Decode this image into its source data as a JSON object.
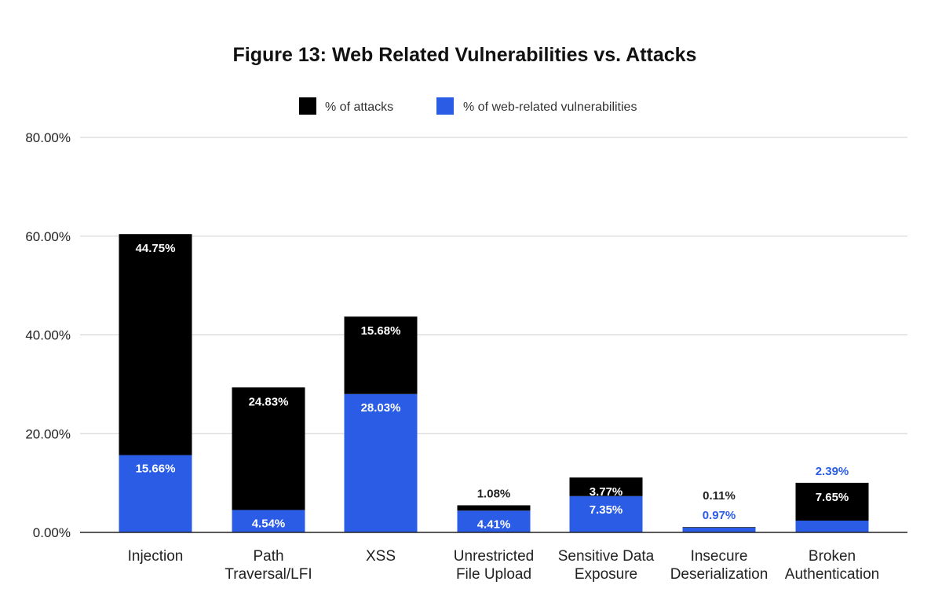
{
  "chart_data": {
    "type": "bar",
    "stacked": true,
    "title": "Figure 13: Web Related Vulnerabilities vs. Attacks",
    "xlabel": "",
    "ylabel": "",
    "ylim": [
      0,
      80
    ],
    "yticks": [
      "0.00%",
      "20.00%",
      "40.00%",
      "60.00%",
      "80.00%"
    ],
    "yticks_values": [
      0,
      20,
      40,
      60,
      80
    ],
    "grid": true,
    "legend_position": "top",
    "categories": [
      [
        "Injection"
      ],
      [
        "Path",
        "Traversal/LFI"
      ],
      [
        "XSS"
      ],
      [
        "Unrestricted",
        "File Upload"
      ],
      [
        "Sensitive Data",
        "Exposure"
      ],
      [
        "Insecure",
        "Deserialization"
      ],
      [
        "Broken",
        "Authentication"
      ]
    ],
    "series": [
      {
        "name": "% of web-related vulnerabilities",
        "color": "#2b5ce6",
        "values": [
          15.66,
          4.54,
          28.03,
          4.41,
          7.35,
          0.97,
          2.39
        ],
        "labels": [
          "15.66%",
          "4.54%",
          "28.03%",
          "4.41%",
          "7.35%",
          "0.97%",
          "2.39%"
        ]
      },
      {
        "name": "% of attacks",
        "color": "#000000",
        "values": [
          44.75,
          24.83,
          15.68,
          1.08,
          3.77,
          0.11,
          7.65
        ],
        "labels": [
          "44.75%",
          "24.83%",
          "15.68%",
          "1.08%",
          "3.77%",
          "0.11%",
          "7.65%"
        ]
      }
    ],
    "legend": [
      {
        "name": "% of attacks",
        "color": "#000000"
      },
      {
        "name": "% of web-related vulnerabilities",
        "color": "#2b5ce6"
      }
    ]
  }
}
